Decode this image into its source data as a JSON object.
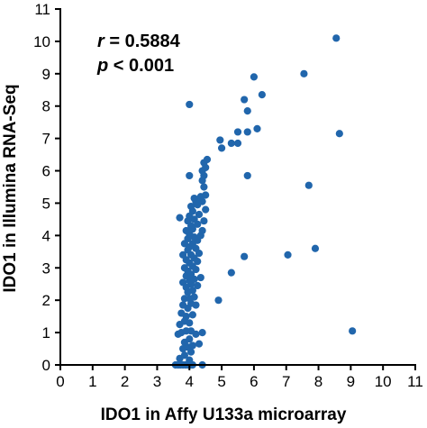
{
  "chart_data": {
    "type": "scatter",
    "xlabel": "IDO1 in Affy U133a microarray",
    "ylabel": "IDO1 in Illumina RNA-Seq",
    "xlim": [
      0,
      11
    ],
    "ylim": [
      0,
      11
    ],
    "xticks": [
      "0",
      "1",
      "2",
      "3",
      "4",
      "5",
      "6",
      "7",
      "8",
      "9",
      "10",
      "11"
    ],
    "yticks": [
      "0",
      "1",
      "2",
      "3",
      "4",
      "5",
      "6",
      "7",
      "8",
      "9",
      "10",
      "11"
    ],
    "annotation": {
      "r_symbol": "r",
      "r_text": " = 0.5884",
      "p_symbol": "p",
      "p_text": " < 0.001"
    },
    "grid": false,
    "marker_color": "#2166ac",
    "points": [
      [
        3.57,
        0
      ],
      [
        3.65,
        0
      ],
      [
        3.72,
        0
      ],
      [
        3.8,
        0
      ],
      [
        3.88,
        0
      ],
      [
        3.95,
        0
      ],
      [
        4.03,
        0
      ],
      [
        4.1,
        0
      ],
      [
        4.4,
        0
      ],
      [
        3.7,
        0.2
      ],
      [
        4.0,
        0.15
      ],
      [
        3.85,
        0.3
      ],
      [
        4.05,
        0.4
      ],
      [
        3.8,
        0.5
      ],
      [
        3.95,
        0.55
      ],
      [
        4.1,
        0.6
      ],
      [
        3.85,
        0.7
      ],
      [
        4.0,
        0.8
      ],
      [
        4.3,
        0.65
      ],
      [
        3.65,
        0.95
      ],
      [
        3.75,
        1.0
      ],
      [
        3.9,
        1.05
      ],
      [
        4.05,
        1.05
      ],
      [
        4.2,
        0.95
      ],
      [
        4.4,
        1.0
      ],
      [
        3.7,
        1.25
      ],
      [
        3.85,
        1.35
      ],
      [
        4.0,
        1.3
      ],
      [
        3.9,
        1.5
      ],
      [
        4.1,
        1.55
      ],
      [
        3.75,
        1.6
      ],
      [
        3.95,
        1.75
      ],
      [
        3.8,
        1.85
      ],
      [
        4.05,
        1.9
      ],
      [
        4.2,
        1.85
      ],
      [
        3.85,
        2.05
      ],
      [
        4.0,
        2.05
      ],
      [
        4.15,
        2.1
      ],
      [
        3.95,
        2.25
      ],
      [
        4.1,
        2.3
      ],
      [
        3.9,
        2.4
      ],
      [
        4.05,
        2.5
      ],
      [
        4.25,
        2.45
      ],
      [
        3.8,
        2.55
      ],
      [
        4.0,
        2.6
      ],
      [
        4.15,
        2.65
      ],
      [
        3.9,
        2.75
      ],
      [
        4.35,
        2.7
      ],
      [
        4.05,
        2.8
      ],
      [
        3.95,
        2.9
      ],
      [
        4.2,
        2.95
      ],
      [
        3.85,
        3.0
      ],
      [
        4.1,
        3.05
      ],
      [
        4.0,
        3.15
      ],
      [
        4.25,
        3.2
      ],
      [
        3.9,
        3.25
      ],
      [
        4.15,
        3.3
      ],
      [
        3.8,
        3.4
      ],
      [
        4.05,
        3.4
      ],
      [
        4.3,
        3.45
      ],
      [
        3.95,
        3.55
      ],
      [
        4.2,
        3.6
      ],
      [
        4.0,
        3.65
      ],
      [
        3.85,
        3.75
      ],
      [
        4.1,
        3.75
      ],
      [
        4.25,
        3.85
      ],
      [
        3.95,
        3.9
      ],
      [
        4.15,
        3.95
      ],
      [
        4.0,
        4.05
      ],
      [
        4.35,
        4.0
      ],
      [
        3.9,
        4.15
      ],
      [
        4.1,
        4.2
      ],
      [
        4.4,
        4.15
      ],
      [
        4.05,
        4.3
      ],
      [
        4.25,
        4.35
      ],
      [
        3.95,
        4.45
      ],
      [
        4.15,
        4.5
      ],
      [
        4.45,
        4.45
      ],
      [
        3.7,
        4.55
      ],
      [
        4.0,
        4.6
      ],
      [
        4.3,
        4.65
      ],
      [
        4.1,
        4.75
      ],
      [
        4.5,
        4.8
      ],
      [
        4.05,
        4.9
      ],
      [
        4.25,
        4.95
      ],
      [
        4.2,
        5.05
      ],
      [
        4.4,
        5.05
      ],
      [
        4.15,
        5.15
      ],
      [
        4.35,
        5.2
      ],
      [
        4.5,
        5.25
      ],
      [
        4.45,
        5.5
      ],
      [
        4.4,
        5.7
      ],
      [
        4.45,
        5.85
      ],
      [
        4.4,
        6.0
      ],
      [
        4.5,
        6.1
      ],
      [
        4.45,
        6.25
      ],
      [
        4.55,
        6.35
      ],
      [
        4.0,
        5.85
      ],
      [
        4.0,
        8.05
      ],
      [
        4.9,
        2.0
      ],
      [
        5.0,
        6.7
      ],
      [
        4.95,
        6.95
      ],
      [
        5.3,
        6.85
      ],
      [
        5.5,
        7.2
      ],
      [
        5.5,
        6.85
      ],
      [
        5.7,
        8.2
      ],
      [
        5.8,
        7.85
      ],
      [
        5.8,
        7.2
      ],
      [
        6.1,
        7.3
      ],
      [
        6.0,
        8.9
      ],
      [
        6.25,
        8.35
      ],
      [
        5.8,
        5.85
      ],
      [
        5.7,
        3.35
      ],
      [
        5.3,
        2.85
      ],
      [
        7.05,
        3.4
      ],
      [
        7.9,
        3.6
      ],
      [
        7.7,
        5.55
      ],
      [
        8.65,
        7.15
      ],
      [
        7.55,
        9.0
      ],
      [
        8.55,
        10.1
      ],
      [
        9.05,
        1.05
      ]
    ]
  }
}
